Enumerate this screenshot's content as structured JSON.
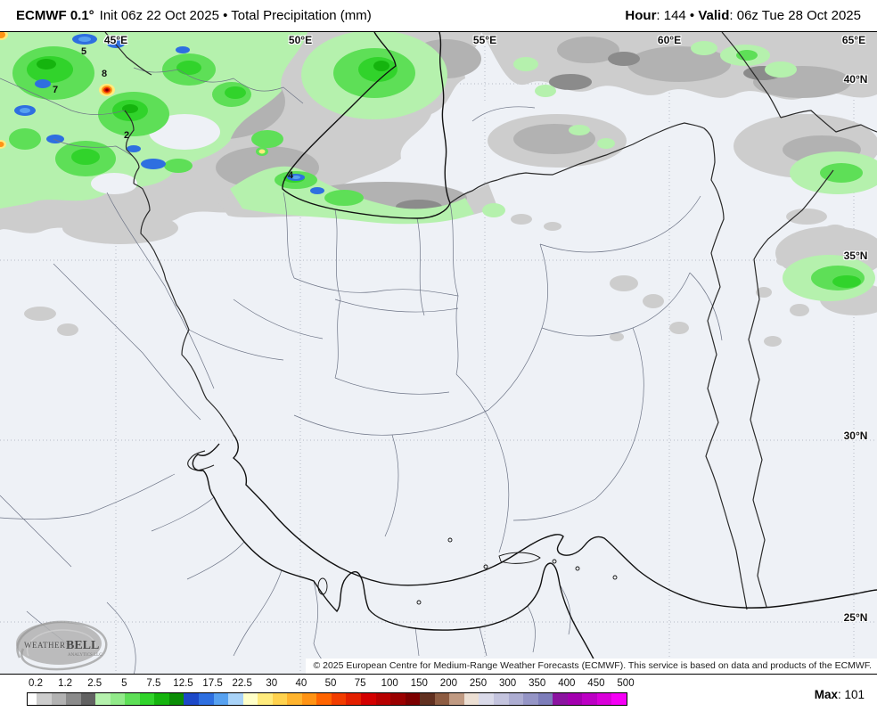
{
  "header": {
    "title_bold": "ECMWF 0.1°",
    "title_rest": "Init 06z 22 Oct 2025 • Total Precipitation (mm)",
    "hour_label": "Hour",
    "hour_value": ": 144 • ",
    "valid_label": "Valid",
    "valid_value": ": 06z Tue 28 Oct 2025"
  },
  "map": {
    "lon_labels": [
      "45°E",
      "50°E",
      "55°E",
      "60°E",
      "65°E"
    ],
    "lat_labels": [
      "40°N",
      "35°N",
      "30°N",
      "25°N"
    ],
    "contour_labels": [
      "5",
      "8",
      "7",
      "2",
      "4"
    ],
    "copyright": "© 2025 European Centre for Medium-Range Weather Forecasts (ECMWF). This service is based on data and products of the ECMWF.",
    "logo": {
      "name_a": "WEATHER",
      "name_b": "BELL",
      "sub": "ANALYTICS LLC"
    }
  },
  "colors": {
    "map_background": "#eef1f6",
    "coastline": "#111111",
    "country_border": "#2a2a2a",
    "province_border": "#6d7486",
    "graticule": "#b6bbc6"
  },
  "legend": {
    "ticks": [
      "0.2",
      "1.2",
      "2.5",
      "5",
      "7.5",
      "12.5",
      "17.5",
      "22.5",
      "30",
      "40",
      "50",
      "75",
      "100",
      "150",
      "200",
      "250",
      "300",
      "350",
      "400",
      "450",
      "500"
    ],
    "colors": [
      "#ffffff",
      "#cdcdcd",
      "#b2b2b2",
      "#8b8b8b",
      "#626262",
      "#b5f1ad",
      "#92ea8a",
      "#5edf57",
      "#31d32b",
      "#15b40e",
      "#0b8d06",
      "#1d49c8",
      "#2e6fe0",
      "#57a1f0",
      "#a9d3f8",
      "#ffffc8",
      "#ffeb7d",
      "#ffd24e",
      "#ffb42e",
      "#ff9314",
      "#ff6400",
      "#f23d00",
      "#e32000",
      "#d30000",
      "#b70000",
      "#9a0000",
      "#7c0000",
      "#613020",
      "#8d5c42",
      "#c09a82",
      "#ecdfd3",
      "#dadae9",
      "#c4c4de",
      "#adadd2",
      "#9595c6",
      "#7d7dba",
      "#8b14a0",
      "#a300af",
      "#bc00c4",
      "#d900d9",
      "#f500f5"
    ],
    "max_label": "Max",
    "max_rest": ": 101"
  }
}
